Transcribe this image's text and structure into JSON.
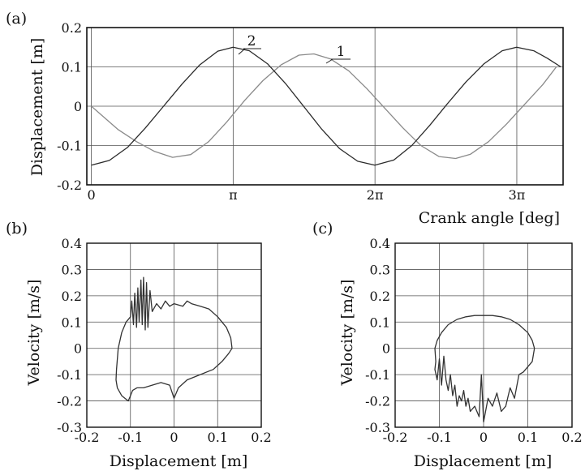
{
  "chart_data": [
    {
      "panel": "(a)",
      "type": "line",
      "xlabel": "Crank angle [deg]",
      "ylabel": "Displacement [m]",
      "xlim": [
        -0.1,
        10.45
      ],
      "ylim": [
        -0.2,
        0.2
      ],
      "x_ticks": [
        0,
        3.1416,
        6.2832,
        9.4248
      ],
      "x_tick_labels": [
        "0",
        "π",
        "2π",
        "3π"
      ],
      "y_ticks": [
        -0.2,
        -0.1,
        0,
        0.1,
        0.2
      ],
      "y_tick_labels": [
        "-0.2",
        "-0.1",
        "0",
        "0.1",
        "0.2"
      ],
      "grid": true,
      "series": [
        {
          "name": "1",
          "color": "#8a8a8a",
          "x": [
            0,
            0.3,
            0.6,
            1.0,
            1.4,
            1.8,
            2.2,
            2.6,
            3.0,
            3.4,
            3.8,
            4.2,
            4.6,
            4.93,
            5.3,
            5.7,
            6.1,
            6.5,
            6.9,
            7.3,
            7.7,
            8.07,
            8.4,
            8.8,
            9.2,
            9.6,
            10.0,
            10.3
          ],
          "y": [
            0.0,
            -0.03,
            -0.06,
            -0.09,
            -0.115,
            -0.13,
            -0.123,
            -0.09,
            -0.04,
            0.015,
            0.065,
            0.105,
            0.13,
            0.133,
            0.12,
            0.09,
            0.045,
            -0.005,
            -0.055,
            -0.1,
            -0.128,
            -0.133,
            -0.122,
            -0.09,
            -0.045,
            0.005,
            0.055,
            0.1
          ]
        },
        {
          "name": "2",
          "color": "#2a2a2a",
          "x": [
            0,
            0.4,
            0.8,
            1.2,
            1.6,
            2.0,
            2.4,
            2.8,
            3.14,
            3.5,
            3.9,
            4.3,
            4.7,
            5.1,
            5.5,
            5.9,
            6.28,
            6.7,
            7.1,
            7.5,
            7.9,
            8.3,
            8.7,
            9.1,
            9.42,
            9.8,
            10.1,
            10.4
          ],
          "y": [
            -0.15,
            -0.138,
            -0.105,
            -0.055,
            0.0,
            0.055,
            0.105,
            0.14,
            0.15,
            0.141,
            0.108,
            0.058,
            0.0,
            -0.058,
            -0.108,
            -0.14,
            -0.15,
            -0.137,
            -0.1,
            -0.048,
            0.008,
            0.062,
            0.108,
            0.141,
            0.15,
            0.141,
            0.122,
            0.1
          ]
        }
      ]
    },
    {
      "panel": "(b)",
      "type": "line",
      "xlabel": "Displacement [m]",
      "ylabel": "Velocity [m/s]",
      "xlim": [
        -0.2,
        0.2
      ],
      "ylim": [
        -0.3,
        0.4
      ],
      "x_ticks": [
        -0.2,
        -0.1,
        0,
        0.1,
        0.2
      ],
      "y_ticks": [
        -0.3,
        -0.2,
        -0.1,
        0,
        0.1,
        0.2,
        0.3,
        0.4
      ],
      "x_tick_labels": [
        "-0.2",
        "-0.1",
        "0",
        "0.1",
        "0.2"
      ],
      "y_tick_labels": [
        "-0.3",
        "-0.2",
        "-0.1",
        "0",
        "0.1",
        "0.2",
        "0.3",
        "0.4"
      ],
      "grid": true,
      "series": [
        {
          "color": "#333333",
          "x": [
            0.133,
            0.13,
            0.12,
            0.1,
            0.08,
            0.06,
            0.04,
            0.03,
            0.02,
            0.0,
            -0.01,
            -0.02,
            -0.03,
            -0.04,
            -0.05,
            -0.055,
            -0.06,
            -0.063,
            -0.066,
            -0.07,
            -0.073,
            -0.076,
            -0.08,
            -0.083,
            -0.086,
            -0.09,
            -0.093,
            -0.097,
            -0.1,
            -0.11,
            -0.12,
            -0.128,
            -0.132,
            -0.133,
            -0.13,
            -0.12,
            -0.105,
            -0.1,
            -0.095,
            -0.085,
            -0.07,
            -0.05,
            -0.03,
            -0.01,
            0.0,
            0.01,
            0.03,
            0.06,
            0.09,
            0.11,
            0.125,
            0.133
          ],
          "y": [
            0.0,
            0.04,
            0.08,
            0.12,
            0.15,
            0.16,
            0.17,
            0.18,
            0.16,
            0.17,
            0.16,
            0.18,
            0.15,
            0.17,
            0.14,
            0.22,
            0.08,
            0.25,
            0.07,
            0.27,
            0.09,
            0.26,
            0.1,
            0.23,
            0.08,
            0.21,
            0.09,
            0.18,
            0.12,
            0.1,
            0.06,
            0.0,
            -0.08,
            -0.12,
            -0.15,
            -0.18,
            -0.2,
            -0.18,
            -0.16,
            -0.15,
            -0.15,
            -0.14,
            -0.13,
            -0.14,
            -0.19,
            -0.15,
            -0.12,
            -0.1,
            -0.08,
            -0.05,
            -0.02,
            0.0
          ]
        }
      ]
    },
    {
      "panel": "(c)",
      "type": "line",
      "xlabel": "Displacement [m]",
      "ylabel": "Velocity [m/s]",
      "xlim": [
        -0.2,
        0.2
      ],
      "ylim": [
        -0.3,
        0.4
      ],
      "x_ticks": [
        -0.2,
        -0.1,
        0,
        0.1,
        0.2
      ],
      "y_ticks": [
        -0.3,
        -0.2,
        -0.1,
        0,
        0.1,
        0.2,
        0.3,
        0.4
      ],
      "x_tick_labels": [
        "-0.2",
        "-0.1",
        "0",
        "0.1",
        "0.2"
      ],
      "y_tick_labels": [
        "-0.3",
        "-0.2",
        "-0.1",
        "0",
        "0.1",
        "0.2",
        "0.3",
        "0.4"
      ],
      "grid": true,
      "series": [
        {
          "color": "#333333",
          "x": [
            0.115,
            0.11,
            0.1,
            0.08,
            0.06,
            0.04,
            0.02,
            0.0,
            -0.02,
            -0.04,
            -0.06,
            -0.08,
            -0.095,
            -0.105,
            -0.11,
            -0.108,
            -0.11,
            -0.105,
            -0.1,
            -0.095,
            -0.09,
            -0.085,
            -0.08,
            -0.075,
            -0.07,
            -0.065,
            -0.06,
            -0.055,
            -0.05,
            -0.045,
            -0.04,
            -0.035,
            -0.03,
            -0.02,
            -0.01,
            -0.005,
            0.0,
            0.01,
            0.02,
            0.03,
            0.04,
            0.05,
            0.06,
            0.07,
            0.08,
            0.09,
            0.1,
            0.11,
            0.115
          ],
          "y": [
            0.0,
            0.03,
            0.06,
            0.09,
            0.11,
            0.12,
            0.125,
            0.125,
            0.125,
            0.12,
            0.11,
            0.09,
            0.06,
            0.03,
            0.0,
            -0.05,
            -0.08,
            -0.12,
            -0.04,
            -0.14,
            -0.03,
            -0.12,
            -0.16,
            -0.1,
            -0.18,
            -0.14,
            -0.22,
            -0.18,
            -0.2,
            -0.16,
            -0.22,
            -0.19,
            -0.24,
            -0.22,
            -0.26,
            -0.1,
            -0.28,
            -0.19,
            -0.22,
            -0.17,
            -0.24,
            -0.22,
            -0.15,
            -0.19,
            -0.1,
            -0.09,
            -0.07,
            -0.05,
            0.0
          ]
        }
      ]
    }
  ]
}
